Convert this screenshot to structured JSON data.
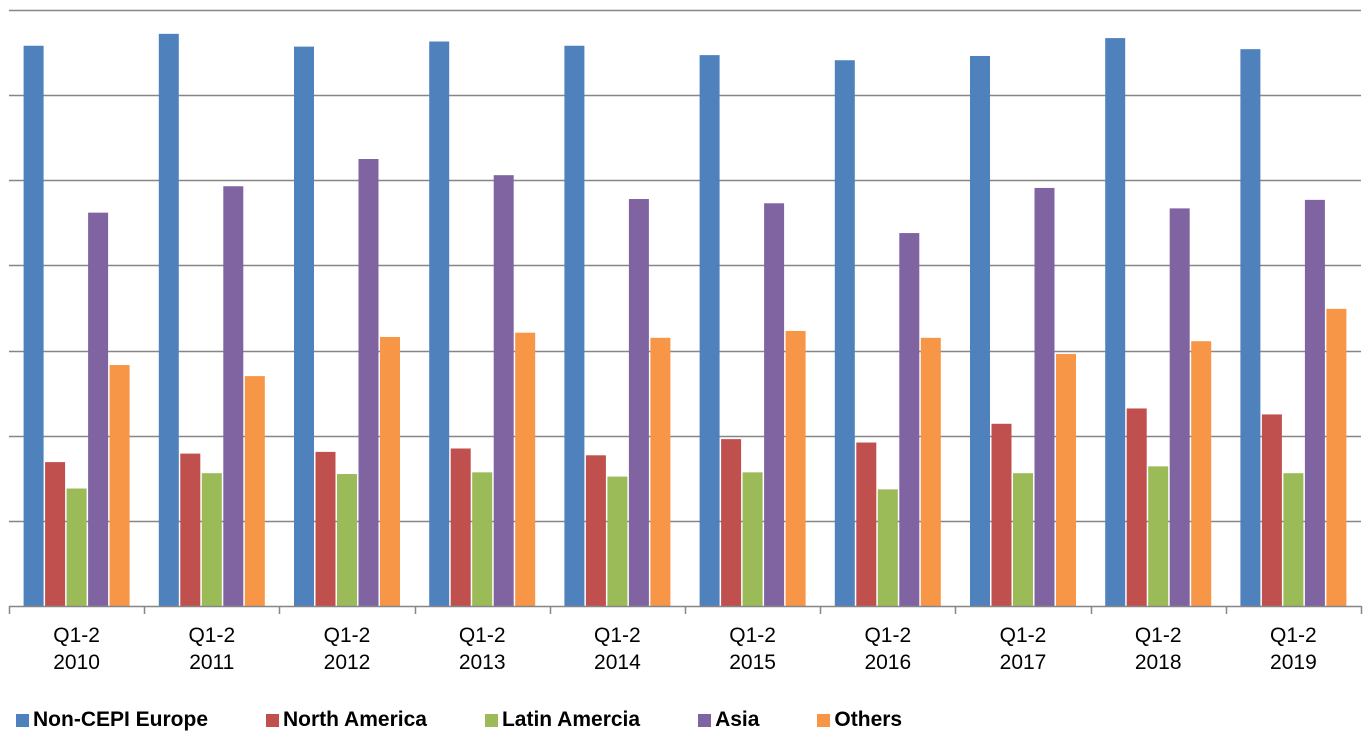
{
  "chart_data": {
    "type": "bar",
    "title": "",
    "xlabel": "",
    "ylabel": "",
    "ylim": [
      0,
      7
    ],
    "grid": true,
    "y_tick_labels_shown": false,
    "legend_position": "bottom",
    "categories": [
      [
        "Q1-2",
        "2010"
      ],
      [
        "Q1-2",
        "2011"
      ],
      [
        "Q1-2",
        "2012"
      ],
      [
        "Q1-2",
        "2013"
      ],
      [
        "Q1-2",
        "2014"
      ],
      [
        "Q1-2",
        "2015"
      ],
      [
        "Q1-2",
        "2016"
      ],
      [
        "Q1-2",
        "2017"
      ],
      [
        "Q1-2",
        "2018"
      ],
      [
        "Q1-2",
        "2019"
      ]
    ],
    "series": [
      {
        "name": "Non-CEPI Europe",
        "color": "#4F81BD",
        "values": [
          6.58,
          6.72,
          6.57,
          6.63,
          6.58,
          6.47,
          6.41,
          6.46,
          6.67,
          6.54
        ]
      },
      {
        "name": "North America",
        "color": "#C0504D",
        "values": [
          1.69,
          1.79,
          1.81,
          1.85,
          1.77,
          1.96,
          1.92,
          2.14,
          2.32,
          2.25
        ]
      },
      {
        "name": "Latin Amercia",
        "color": "#9BBB59",
        "values": [
          1.38,
          1.56,
          1.55,
          1.57,
          1.52,
          1.57,
          1.37,
          1.56,
          1.64,
          1.56
        ]
      },
      {
        "name": "Asia",
        "color": "#8064A2",
        "values": [
          4.62,
          4.93,
          5.25,
          5.06,
          4.78,
          4.73,
          4.38,
          4.91,
          4.67,
          4.77
        ]
      },
      {
        "name": "Others",
        "color": "#F79646",
        "values": [
          2.83,
          2.7,
          3.16,
          3.21,
          3.15,
          3.23,
          3.15,
          2.96,
          3.11,
          3.49
        ]
      }
    ]
  }
}
